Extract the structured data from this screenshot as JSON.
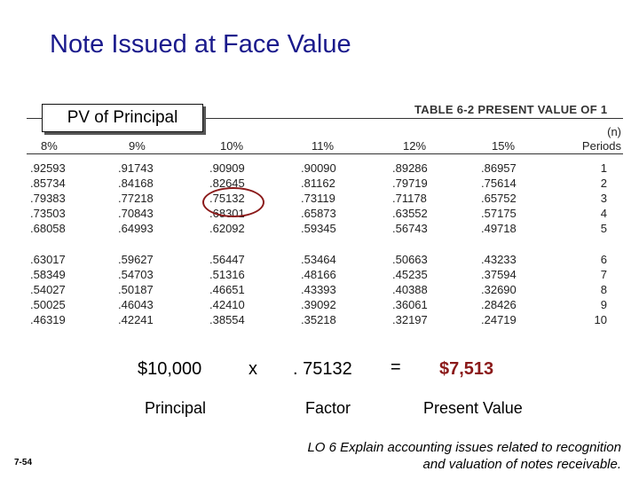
{
  "slide_title": "Note Issued at Face Value",
  "pv_label": "PV of Principal",
  "table": {
    "title": "TABLE 6-2  PRESENT VALUE OF 1",
    "headers": [
      "8%",
      "9%",
      "10%",
      "11%",
      "12%",
      "15%"
    ],
    "periods_header_top": "(n)",
    "periods_header": "Periods",
    "rows": [
      {
        "values": [
          ".92593",
          ".91743",
          ".90909",
          ".90090",
          ".89286",
          ".86957"
        ],
        "period": "1"
      },
      {
        "values": [
          ".85734",
          ".84168",
          ".82645",
          ".81162",
          ".79719",
          ".75614"
        ],
        "period": "2"
      },
      {
        "values": [
          ".79383",
          ".77218",
          ".75132",
          ".73119",
          ".71178",
          ".65752"
        ],
        "period": "3"
      },
      {
        "values": [
          ".73503",
          ".70843",
          ".68301",
          ".65873",
          ".63552",
          ".57175"
        ],
        "period": "4"
      },
      {
        "values": [
          ".68058",
          ".64993",
          ".62092",
          ".59345",
          ".56743",
          ".49718"
        ],
        "period": "5"
      },
      {
        "values": [
          ".63017",
          ".59627",
          ".56447",
          ".53464",
          ".50663",
          ".43233"
        ],
        "period": "6"
      },
      {
        "values": [
          ".58349",
          ".54703",
          ".51316",
          ".48166",
          ".45235",
          ".37594"
        ],
        "period": "7"
      },
      {
        "values": [
          ".54027",
          ".50187",
          ".46651",
          ".43393",
          ".40388",
          ".32690"
        ],
        "period": "8"
      },
      {
        "values": [
          ".50025",
          ".46043",
          ".42410",
          ".39092",
          ".36061",
          ".28426"
        ],
        "period": "9"
      },
      {
        "values": [
          ".46319",
          ".42241",
          ".38554",
          ".35218",
          ".32197",
          ".24719"
        ],
        "period": "10"
      }
    ]
  },
  "calculation": {
    "principal": "$10,000",
    "times": "x",
    "factor": ". 75132",
    "equals": "=",
    "result": "$7,513",
    "principal_label": "Principal",
    "factor_label": "Factor",
    "result_label": "Present Value"
  },
  "footer": {
    "lo_line1": "LO 6  Explain accounting issues related to recognition",
    "lo_line2": "and valuation of notes receivable.",
    "page_number": "7-54"
  },
  "colors": {
    "title": "#1a1a8c",
    "highlight": "#8b1a1a"
  }
}
